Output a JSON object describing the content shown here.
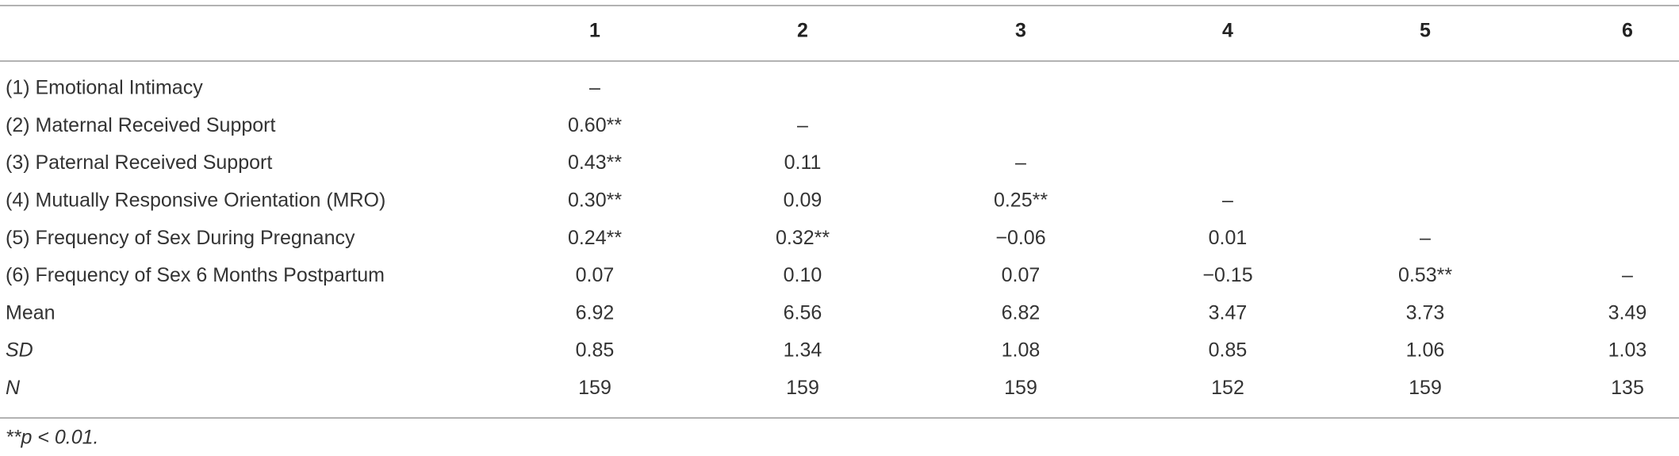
{
  "table": {
    "header": [
      "1",
      "2",
      "3",
      "4",
      "5",
      "6"
    ],
    "rows": [
      {
        "label": "(1) Emotional Intimacy",
        "cells": [
          "–"
        ]
      },
      {
        "label": "(2) Maternal Received Support",
        "cells": [
          "0.60**",
          "–"
        ]
      },
      {
        "label": "(3) Paternal Received Support",
        "cells": [
          "0.43**",
          "0.11",
          "–"
        ]
      },
      {
        "label": "(4) Mutually Responsive Orientation (MRO)",
        "cells": [
          "0.30**",
          "0.09",
          "0.25**",
          "–"
        ]
      },
      {
        "label": "(5) Frequency of Sex During Pregnancy",
        "cells": [
          "0.24**",
          "0.32**",
          "−0.06",
          "0.01",
          "–"
        ]
      },
      {
        "label": "(6) Frequency of Sex 6 Months Postpartum",
        "cells": [
          "0.07",
          "0.10",
          "0.07",
          "−0.15",
          "0.53**",
          "–"
        ]
      },
      {
        "label": "Mean",
        "cells": [
          "6.92",
          "6.56",
          "6.82",
          "3.47",
          "3.73",
          "3.49"
        ]
      },
      {
        "label": "SD",
        "cells": [
          "0.85",
          "1.34",
          "1.08",
          "0.85",
          "1.06",
          "1.03"
        ]
      },
      {
        "label": "N",
        "cells": [
          "159",
          "159",
          "159",
          "152",
          "159",
          "135"
        ]
      }
    ],
    "footnote": "**p < 0.01."
  }
}
